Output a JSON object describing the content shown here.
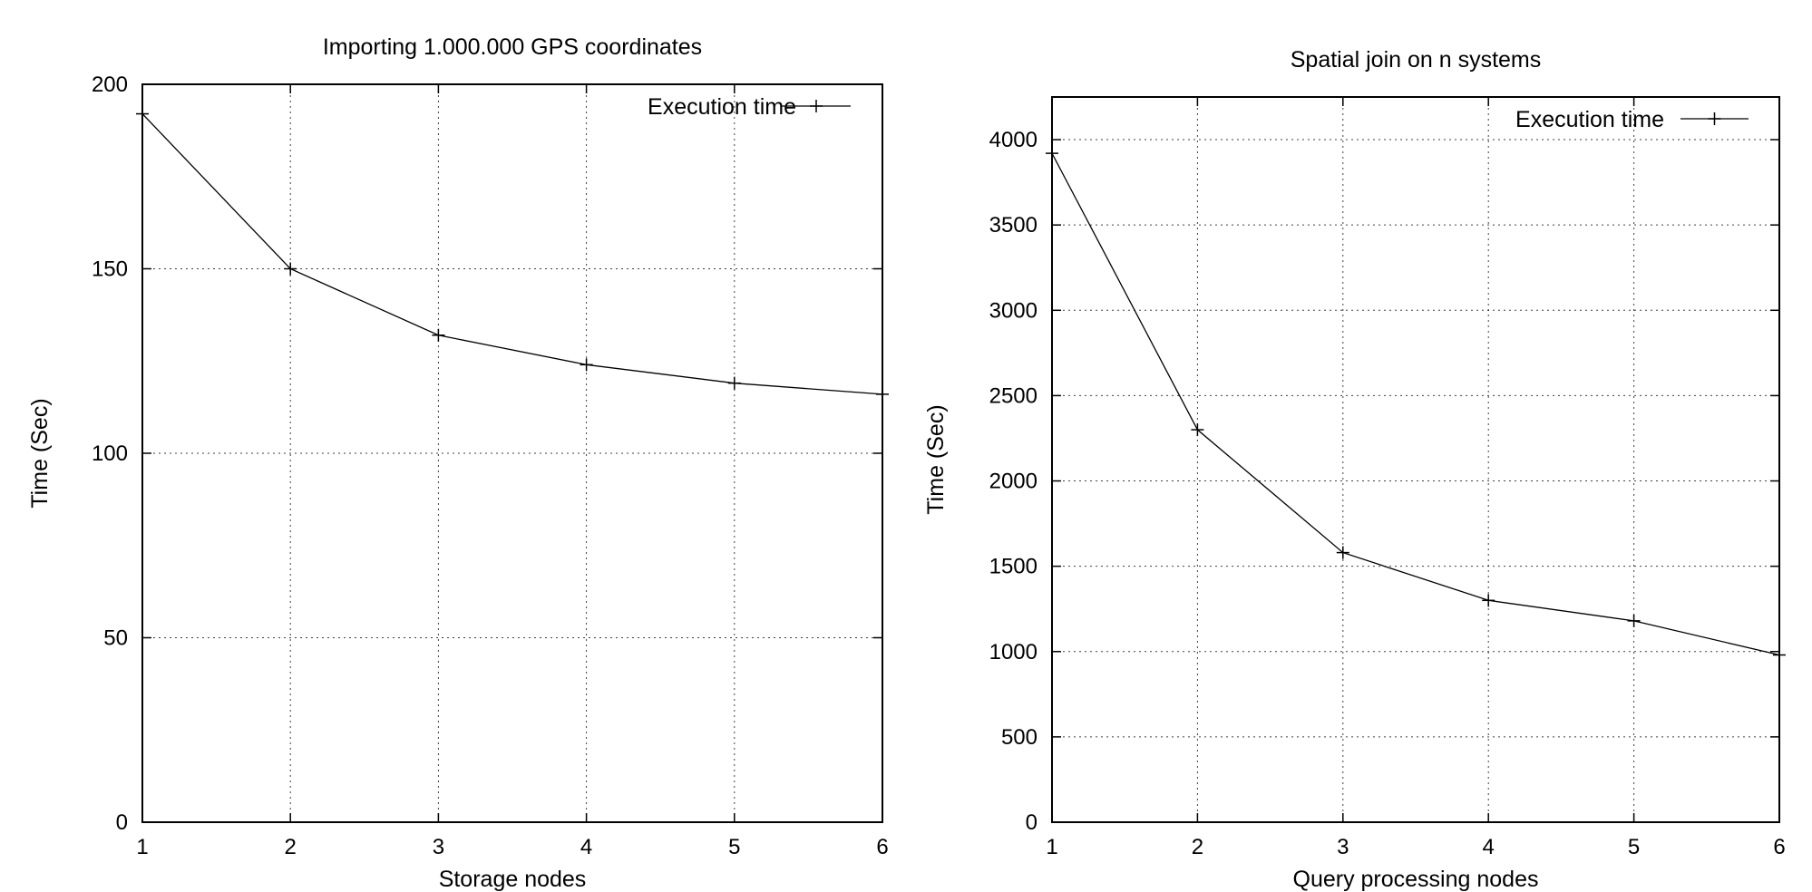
{
  "chart_data": [
    {
      "type": "line",
      "title": "Importing 1.000.000 GPS coordinates",
      "xlabel": "Storage nodes",
      "ylabel": "Time (Sec)",
      "xlim": [
        1,
        6
      ],
      "ylim": [
        0,
        200
      ],
      "xticks": [
        1,
        2,
        3,
        4,
        5,
        6
      ],
      "yticks": [
        0,
        50,
        100,
        150,
        200
      ],
      "grid": true,
      "legend": "top-right",
      "series": [
        {
          "name": "Execution time",
          "x": [
            1,
            2,
            3,
            4,
            5,
            6
          ],
          "y": [
            192,
            150,
            132,
            124,
            119,
            116
          ]
        }
      ]
    },
    {
      "type": "line",
      "title": "Spatial join on n systems",
      "xlabel": "Query processing nodes",
      "ylabel": "Time (Sec)",
      "xlim": [
        1,
        6
      ],
      "ylim": [
        0,
        4250
      ],
      "xticks": [
        1,
        2,
        3,
        4,
        5,
        6
      ],
      "yticks": [
        0,
        500,
        1000,
        1500,
        2000,
        2500,
        3000,
        3500,
        4000
      ],
      "grid": true,
      "legend": "top-right",
      "series": [
        {
          "name": "Execution time",
          "x": [
            1,
            2,
            3,
            4,
            5,
            6
          ],
          "y": [
            3920,
            2300,
            1580,
            1300,
            1180,
            980
          ]
        }
      ]
    }
  ]
}
